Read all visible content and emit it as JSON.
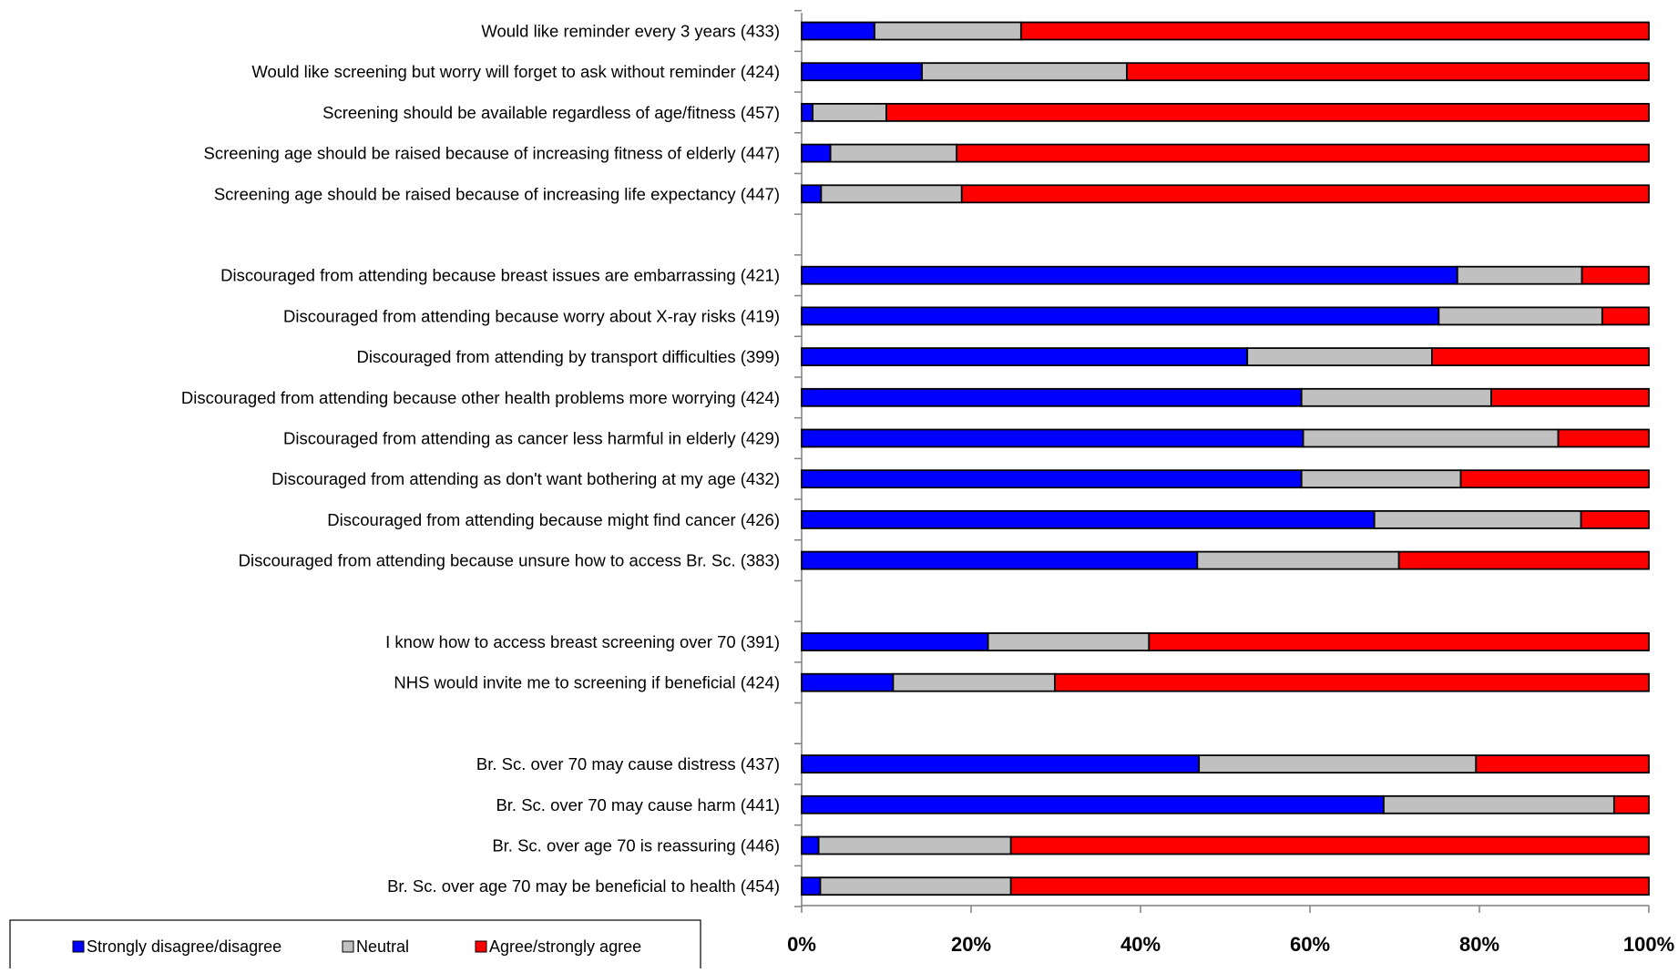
{
  "chart_data": {
    "type": "bar",
    "orientation": "horizontal",
    "stacked": true,
    "percent_stacked": true,
    "xlim": [
      0,
      100
    ],
    "xticks": [
      "0%",
      "20%",
      "40%",
      "60%",
      "80%",
      "100%"
    ],
    "grid": false,
    "legend_position": "bottom-left",
    "series": [
      {
        "name": "Strongly disagree/disagree",
        "color": "#0000ff"
      },
      {
        "name": "Neutral",
        "color": "#c0c0c0"
      },
      {
        "name": "Agree/strongly agree",
        "color": "#ff0000"
      }
    ],
    "rows": [
      {
        "label": "Would like reminder every 3 years (433)",
        "values": [
          8.6,
          17.3,
          74.1
        ]
      },
      {
        "label": "Would like screening but worry will forget to ask  without reminder (424)",
        "values": [
          14.2,
          24.2,
          61.6
        ]
      },
      {
        "label": "Screening should be available regardless of age/fitness (457)",
        "values": [
          1.3,
          8.7,
          90.0
        ]
      },
      {
        "label": "Screening age should be raised because of increasing fitness of elderly (447)",
        "values": [
          3.4,
          14.9,
          81.7
        ]
      },
      {
        "label": "Screening age should be raised because of increasing life expectancy (447)",
        "values": [
          2.3,
          16.6,
          81.1
        ]
      },
      null,
      {
        "label": "Discouraged from attending because breast issues are embarrassing (421)",
        "values": [
          77.4,
          14.7,
          7.9
        ]
      },
      {
        "label": "Discouraged from attending because worry about X-ray risks (419)",
        "values": [
          75.2,
          19.3,
          5.5
        ]
      },
      {
        "label": "Discouraged from attending by transport difficulties (399)",
        "values": [
          52.6,
          21.8,
          25.6
        ]
      },
      {
        "label": "Discouraged from attending because other health problems more worrying (424)",
        "values": [
          59.0,
          22.4,
          18.6
        ]
      },
      {
        "label": "Discouraged from attending as cancer less harmful in elderly (429)",
        "values": [
          59.2,
          30.1,
          10.7
        ]
      },
      {
        "label": "Discouraged from attending as don't want bothering at my age (432)",
        "values": [
          59.0,
          18.8,
          22.2
        ]
      },
      {
        "label": "Discouraged from attending because might find cancer (426)",
        "values": [
          67.6,
          24.4,
          8.0
        ]
      },
      {
        "label": "Discouraged from attending because unsure how to access Br. Sc. (383)",
        "values": [
          46.7,
          23.8,
          29.5
        ]
      },
      null,
      {
        "label": "I know how to access breast screening over 70 (391)",
        "values": [
          22.0,
          19.0,
          59.0
        ]
      },
      {
        "label": "NHS would invite me to screening if beneficial (424)",
        "values": [
          10.8,
          19.1,
          70.1
        ]
      },
      null,
      {
        "label": "Br. Sc. over 70 may cause distress (437)",
        "values": [
          46.9,
          32.7,
          20.4
        ]
      },
      {
        "label": "Br. Sc. over 70 may cause harm (441)",
        "values": [
          68.7,
          27.2,
          4.1
        ]
      },
      {
        "label": "Br. Sc. over age 70 is reassuring (446)",
        "values": [
          2.0,
          22.7,
          75.3
        ]
      },
      {
        "label": "Br. Sc. over age 70 may be beneficial to health (454)",
        "values": [
          2.2,
          22.5,
          75.3
        ]
      }
    ]
  }
}
